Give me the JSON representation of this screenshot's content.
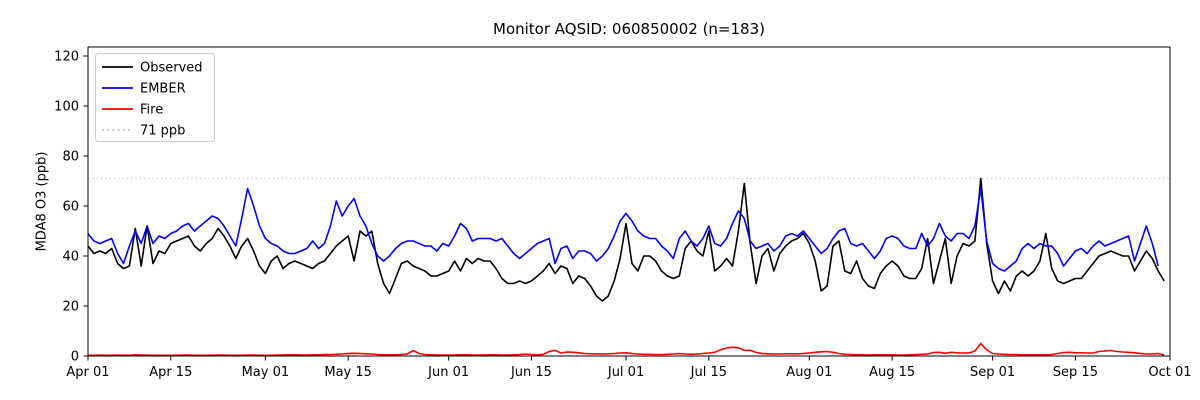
{
  "chart_data": {
    "type": "line",
    "title": "Monitor AQSID: 060850002 (n=183)",
    "xlabel": "",
    "ylabel": "MDA8 O3 (ppb)",
    "xlim": [
      0,
      183
    ],
    "ylim": [
      0,
      123.6
    ],
    "grid": false,
    "legend_position": "upper left",
    "ytick_values": [
      0,
      20,
      40,
      60,
      80,
      100,
      120
    ],
    "xtick_days": [
      0,
      14,
      30,
      44,
      61,
      75,
      91,
      105,
      122,
      136,
      153,
      167,
      183
    ],
    "xtick_labels": [
      "Apr 01",
      "Apr 15",
      "May 01",
      "May 15",
      "Jun 01",
      "Jun 15",
      "Jul 01",
      "Jul 15",
      "Aug 01",
      "Aug 15",
      "Sep 01",
      "Sep 15",
      "Oct 01"
    ],
    "reference_line": {
      "label": "71 ppb",
      "value": 71,
      "style": "dotted",
      "color": "#c8c8c8"
    },
    "x_unit": "days since Apr 01 (daily values)",
    "series": [
      {
        "name": "Observed",
        "color": "#000000",
        "values": [
          44,
          41,
          42,
          41,
          43,
          37,
          35,
          36,
          51,
          36,
          52,
          37,
          42,
          41,
          45,
          46,
          47,
          48,
          44,
          42,
          45,
          47,
          51,
          48,
          44,
          39,
          44,
          47,
          42,
          36,
          33,
          38,
          40,
          35,
          37,
          38,
          37,
          36,
          35,
          37,
          38,
          41,
          44,
          46,
          48,
          38,
          50,
          48,
          50,
          37,
          29,
          25,
          31,
          37,
          38,
          36,
          35,
          34,
          32,
          32,
          33,
          34,
          38,
          34,
          39,
          37,
          39,
          38,
          38,
          35,
          31,
          29,
          29,
          30,
          29,
          30,
          32,
          34,
          37,
          33,
          36,
          35,
          29,
          32,
          31,
          28,
          24,
          22,
          24,
          30,
          39,
          53,
          37,
          34,
          40,
          40,
          38,
          34,
          32,
          31,
          32,
          43,
          46,
          42,
          40,
          50,
          34,
          36,
          39,
          36,
          50,
          69,
          45,
          29,
          40,
          43,
          34,
          41,
          44,
          46,
          47,
          49,
          45,
          38,
          26,
          28,
          44,
          46,
          34,
          33,
          38,
          31,
          28,
          27,
          33,
          36,
          38,
          36,
          32,
          31,
          31,
          35,
          47,
          29,
          38,
          47,
          29,
          40,
          45,
          44,
          46,
          71,
          45,
          30,
          25,
          30,
          26,
          32,
          34,
          32,
          34,
          38,
          49,
          35,
          30,
          29,
          30,
          31,
          31,
          34,
          37,
          40,
          41,
          42,
          41,
          40,
          40,
          34,
          38,
          42,
          39,
          34,
          30
        ]
      },
      {
        "name": "EMBER",
        "color": "#0000ff",
        "values": [
          49,
          46,
          45,
          46,
          47,
          41,
          37,
          44,
          50,
          45,
          52,
          45,
          48,
          47,
          49,
          50,
          52,
          53,
          50,
          52,
          54,
          56,
          55,
          52,
          48,
          44,
          55,
          67,
          60,
          52,
          47,
          45,
          44,
          42,
          41,
          41,
          42,
          43,
          46,
          43,
          45,
          52,
          62,
          56,
          60,
          63,
          56,
          52,
          45,
          40,
          38,
          40,
          43,
          45,
          46,
          46,
          45,
          44,
          44,
          42,
          45,
          44,
          48,
          53,
          51,
          46,
          47,
          47,
          47,
          46,
          47,
          44,
          41,
          39,
          41,
          43,
          45,
          46,
          47,
          37,
          43,
          44,
          39,
          42,
          42,
          41,
          38,
          40,
          43,
          48,
          54,
          57,
          54,
          50,
          48,
          47,
          47,
          44,
          42,
          39,
          47,
          50,
          46,
          44,
          47,
          52,
          45,
          44,
          47,
          53,
          58,
          55,
          46,
          43,
          44,
          45,
          42,
          44,
          48,
          49,
          48,
          50,
          47,
          44,
          41,
          43,
          47,
          50,
          51,
          45,
          44,
          45,
          42,
          39,
          42,
          47,
          48,
          47,
          44,
          43,
          43,
          49,
          44,
          47,
          53,
          48,
          46,
          49,
          49,
          47,
          52,
          67,
          46,
          37,
          35,
          34,
          36,
          38,
          43,
          45,
          43,
          45,
          44,
          44,
          41,
          36,
          39,
          42,
          43,
          41,
          44,
          46,
          44,
          45,
          46,
          47,
          48,
          38,
          45,
          52,
          45,
          36,
          null
        ]
      },
      {
        "name": "Fire",
        "color": "#ff0000",
        "values": [
          0.3,
          0.3,
          0.4,
          0.3,
          0.3,
          0.4,
          0.3,
          0.3,
          0.5,
          0.4,
          0.4,
          0.3,
          0.3,
          0.3,
          0.3,
          0.3,
          0.4,
          0.4,
          0.3,
          0.3,
          0.3,
          0.3,
          0.4,
          0.4,
          0.3,
          0.3,
          0.3,
          0.4,
          0.4,
          0.3,
          0.3,
          0.3,
          0.4,
          0.4,
          0.5,
          0.5,
          0.4,
          0.4,
          0.5,
          0.5,
          0.6,
          0.6,
          0.7,
          0.8,
          1.0,
          1.1,
          1.0,
          0.9,
          0.8,
          0.6,
          0.5,
          0.5,
          0.5,
          0.6,
          0.8,
          2.2,
          1.0,
          0.6,
          0.5,
          0.4,
          0.4,
          0.4,
          0.4,
          0.5,
          0.5,
          0.4,
          0.4,
          0.4,
          0.5,
          0.5,
          0.4,
          0.4,
          0.5,
          0.6,
          0.8,
          0.6,
          0.5,
          0.7,
          1.8,
          2.3,
          1.2,
          1.6,
          1.5,
          1.3,
          1.0,
          0.9,
          0.9,
          0.8,
          0.9,
          1.0,
          1.2,
          1.3,
          1.0,
          0.8,
          0.7,
          0.7,
          0.6,
          0.6,
          0.7,
          0.8,
          1.0,
          0.8,
          0.7,
          0.8,
          1.0,
          1.2,
          1.5,
          2.5,
          3.2,
          3.5,
          3.3,
          2.2,
          2.3,
          1.4,
          1.0,
          0.9,
          0.8,
          0.8,
          0.9,
          0.9,
          0.9,
          1.0,
          1.2,
          1.5,
          1.7,
          1.8,
          1.5,
          1.0,
          0.7,
          0.6,
          0.5,
          0.5,
          0.4,
          0.5,
          0.5,
          0.5,
          0.5,
          0.4,
          0.4,
          0.5,
          0.6,
          0.7,
          0.8,
          1.4,
          1.5,
          1.1,
          1.5,
          1.3,
          1.2,
          1.2,
          2.0,
          5.0,
          2.5,
          1.0,
          0.8,
          0.7,
          0.6,
          0.6,
          0.5,
          0.5,
          0.5,
          0.5,
          0.5,
          0.6,
          1.0,
          1.4,
          1.5,
          1.3,
          1.3,
          1.2,
          1.2,
          1.8,
          2.0,
          2.2,
          1.8,
          1.6,
          1.5,
          1.3,
          1.0,
          0.8,
          0.8,
          1.0,
          0.4
        ]
      }
    ]
  }
}
